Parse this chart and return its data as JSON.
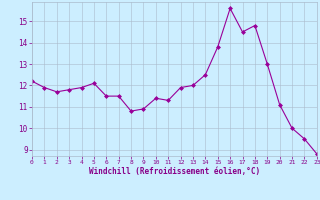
{
  "x": [
    0,
    1,
    2,
    3,
    4,
    5,
    6,
    7,
    8,
    9,
    10,
    11,
    12,
    13,
    14,
    15,
    16,
    17,
    18,
    19,
    20,
    21,
    22,
    23
  ],
  "y": [
    12.2,
    11.9,
    11.7,
    11.8,
    11.9,
    12.1,
    11.5,
    11.5,
    10.8,
    10.9,
    11.4,
    11.3,
    11.9,
    12.0,
    12.5,
    13.8,
    15.6,
    14.5,
    14.8,
    13.0,
    11.1,
    10.0,
    9.5,
    8.8
  ],
  "line_color": "#990099",
  "marker": "D",
  "marker_size": 2,
  "bg_color": "#cceeff",
  "grid_color": "#aabbcc",
  "xlabel": "Windchill (Refroidissement éolien,°C)",
  "xlabel_color": "#880088",
  "tick_color": "#880088",
  "yticks": [
    9,
    10,
    11,
    12,
    13,
    14,
    15
  ],
  "xlim": [
    0,
    23
  ],
  "ylim": [
    8.7,
    15.9
  ]
}
